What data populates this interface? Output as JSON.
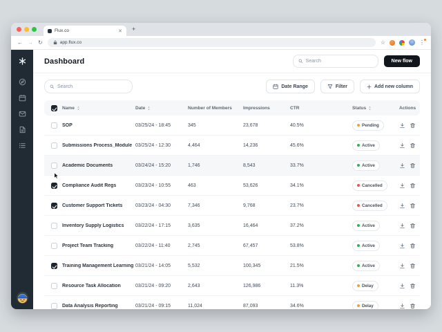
{
  "browser": {
    "tab_title": "Flux.co",
    "url": "app.flux.co"
  },
  "sidebar": {
    "icons": [
      "logo",
      "dashboard",
      "calendar",
      "mail",
      "documents",
      "list",
      "avatar"
    ]
  },
  "page": {
    "title": "Dashboard"
  },
  "header": {
    "search_placeholder": "Search",
    "new_flow": "New flow"
  },
  "toolbar": {
    "search_placeholder": "Search",
    "date_range": "Date Range",
    "filter": "Filter",
    "add_column": "Add new column"
  },
  "status_colors": {
    "Pending": "#eba23c",
    "Active": "#31b15c",
    "Cancelled": "#e8554d",
    "Delay": "#eba23c"
  },
  "table": {
    "columns": [
      {
        "label": "Name",
        "sortable": true
      },
      {
        "label": "Date",
        "sortable": true
      },
      {
        "label": "Number of Members",
        "sortable": false
      },
      {
        "label": "Impressions",
        "sortable": false
      },
      {
        "label": "CTR",
        "sortable": false
      },
      {
        "label": "Status",
        "sortable": true
      },
      {
        "label": "Actions",
        "sortable": false
      }
    ],
    "rows": [
      {
        "name": "SOP",
        "date": "03/25/24 - 18:45",
        "members": "345",
        "impressions": "23,678",
        "ctr": "40.5%",
        "status": "Pending",
        "checked": false,
        "highlighted": false,
        "cursor": false
      },
      {
        "name": "Submissions Process_Module",
        "date": "03/25/24 - 12:30",
        "members": "4,464",
        "impressions": "14,236",
        "ctr": "45.6%",
        "status": "Active",
        "checked": false,
        "highlighted": false,
        "cursor": false
      },
      {
        "name": "Academic Documents",
        "date": "03/24/24 - 15:20",
        "members": "1,746",
        "impressions": "8,543",
        "ctr": "33.7%",
        "status": "Active",
        "checked": false,
        "highlighted": true,
        "cursor": true
      },
      {
        "name": "Compliance Audit Regs",
        "date": "03/23/24 - 10:55",
        "members": "463",
        "impressions": "53,626",
        "ctr": "34.1%",
        "status": "Cancelled",
        "checked": true,
        "highlighted": false,
        "cursor": false
      },
      {
        "name": "Customer Support Tickets",
        "date": "03/23/24 - 04:30",
        "members": "7,346",
        "impressions": "9,768",
        "ctr": "23.7%",
        "status": "Cancelled",
        "checked": true,
        "highlighted": false,
        "cursor": false
      },
      {
        "name": "Inventory Supply Logistics",
        "date": "03/22/24 - 17:15",
        "members": "3,635",
        "impressions": "16,464",
        "ctr": "37.2%",
        "status": "Active",
        "checked": false,
        "highlighted": false,
        "cursor": false
      },
      {
        "name": "Project Team Tracking",
        "date": "03/22/24 - 11:40",
        "members": "2,745",
        "impressions": "67,457",
        "ctr": "53.8%",
        "status": "Active",
        "checked": false,
        "highlighted": false,
        "cursor": false
      },
      {
        "name": "Training Management Learning",
        "date": "03/21/24 - 14:05",
        "members": "5,532",
        "impressions": "100,345",
        "ctr": "21.5%",
        "status": "Active",
        "checked": true,
        "highlighted": false,
        "cursor": false
      },
      {
        "name": "Resource Task Allocation",
        "date": "03/21/24 - 09:20",
        "members": "2,643",
        "impressions": "126,986",
        "ctr": "11.3%",
        "status": "Delay",
        "checked": false,
        "highlighted": false,
        "cursor": false
      },
      {
        "name": "Data Analysis Reporting",
        "date": "03/21/24 - 09:15",
        "members": "11,024",
        "impressions": "87,093",
        "ctr": "34.6%",
        "status": "Delay",
        "checked": false,
        "highlighted": false,
        "cursor": false
      }
    ]
  }
}
